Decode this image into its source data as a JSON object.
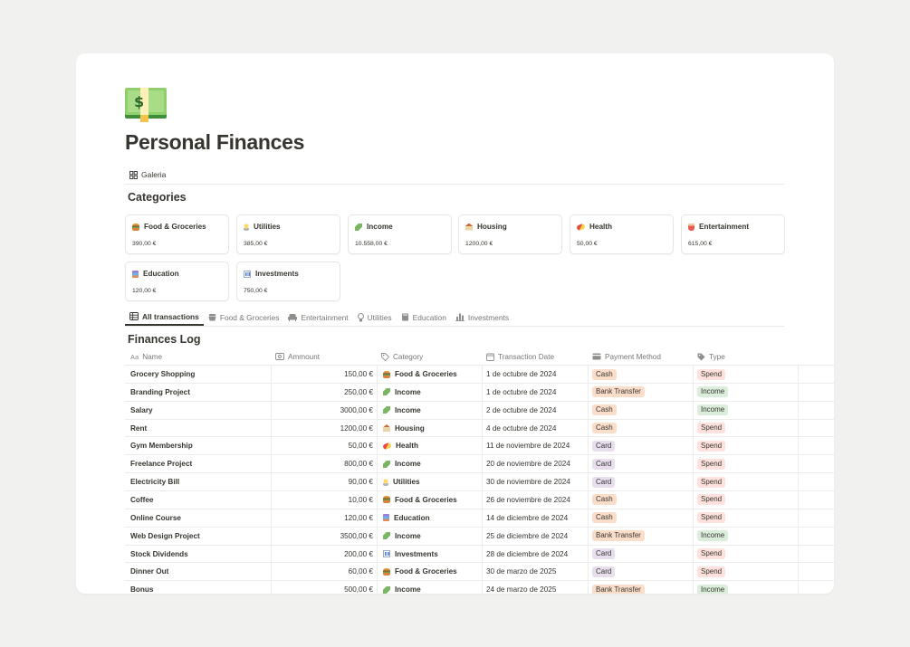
{
  "page": {
    "title": "Personal Finances"
  },
  "top_view": {
    "label": "Galeria"
  },
  "categories_section": {
    "title": "Categories",
    "cards": [
      {
        "name": "Food & Groceries",
        "amount": "390,00 €",
        "icon": "food-icon"
      },
      {
        "name": "Utilities",
        "amount": "385,00 €",
        "icon": "lightbulb-icon"
      },
      {
        "name": "Income",
        "amount": "10.558,00 €",
        "icon": "money-icon"
      },
      {
        "name": "Housing",
        "amount": "1200,00 €",
        "icon": "house-icon"
      },
      {
        "name": "Health",
        "amount": "50,00 €",
        "icon": "pill-icon"
      },
      {
        "name": "Entertainment",
        "amount": "615,00 €",
        "icon": "popcorn-icon"
      },
      {
        "name": "Education",
        "amount": "120,00 €",
        "icon": "books-icon"
      },
      {
        "name": "Investments",
        "amount": "750,00 €",
        "icon": "chart-icon"
      }
    ]
  },
  "tabs": [
    {
      "label": "All transactions",
      "active": true,
      "icon": "table-icon"
    },
    {
      "label": "Food & Groceries",
      "icon": "basket-icon"
    },
    {
      "label": "Entertainment",
      "icon": "sofa-icon"
    },
    {
      "label": "Utilities",
      "icon": "lightbulb-icon"
    },
    {
      "label": "Education",
      "icon": "book-icon"
    },
    {
      "label": "Investments",
      "icon": "bar-chart-icon"
    }
  ],
  "log": {
    "title": "Finances Log",
    "columns": {
      "name": "Name",
      "amount": "Ammount",
      "category": "Category",
      "date": "Transaction Date",
      "payment": "Payment Method",
      "type": "Type"
    },
    "rows": [
      {
        "name": "Grocery Shopping",
        "amount": "150,00 €",
        "category": "Food & Groceries",
        "cat_icon": "food",
        "date": "1 de octubre de 2024",
        "payment": "Cash",
        "type": "Spend"
      },
      {
        "name": "Branding Project",
        "amount": "250,00 €",
        "category": "Income",
        "cat_icon": "income",
        "date": "1 de octubre de 2024",
        "payment": "Bank Transfer",
        "type": "Income"
      },
      {
        "name": "Salary",
        "amount": "3000,00 €",
        "category": "Income",
        "cat_icon": "income",
        "date": "2 de octubre de 2024",
        "payment": "Cash",
        "type": "Income"
      },
      {
        "name": "Rent",
        "amount": "1200,00 €",
        "category": "Housing",
        "cat_icon": "housing",
        "date": "4 de octubre de 2024",
        "payment": "Cash",
        "type": "Spend"
      },
      {
        "name": "Gym Membership",
        "amount": "50,00 €",
        "category": "Health",
        "cat_icon": "health",
        "date": "11 de noviembre de 2024",
        "payment": "Card",
        "type": "Spend"
      },
      {
        "name": "Freelance Project",
        "amount": "800,00 €",
        "category": "Income",
        "cat_icon": "income",
        "date": "20 de noviembre de 2024",
        "payment": "Card",
        "type": "Spend"
      },
      {
        "name": "Electricity Bill",
        "amount": "90,00 €",
        "category": "Utilities",
        "cat_icon": "util",
        "date": "30 de noviembre de 2024",
        "payment": "Card",
        "type": "Spend"
      },
      {
        "name": "Coffee",
        "amount": "10,00 €",
        "category": "Food & Groceries",
        "cat_icon": "food",
        "date": "26 de noviembre de 2024",
        "payment": "Cash",
        "type": "Spend"
      },
      {
        "name": "Online Course",
        "amount": "120,00 €",
        "category": "Education",
        "cat_icon": "edu",
        "date": "14 de diciembre de 2024",
        "payment": "Cash",
        "type": "Spend"
      },
      {
        "name": "Web Design Project",
        "amount": "3500,00 €",
        "category": "Income",
        "cat_icon": "income",
        "date": "25 de diciembre de 2024",
        "payment": "Bank Transfer",
        "type": "Income"
      },
      {
        "name": "Stock Dividends",
        "amount": "200,00 €",
        "category": "Investments",
        "cat_icon": "inv",
        "date": "28 de diciembre de 2024",
        "payment": "Card",
        "type": "Spend"
      },
      {
        "name": "Dinner Out",
        "amount": "60,00 €",
        "category": "Food & Groceries",
        "cat_icon": "food",
        "date": "30 de marzo de 2025",
        "payment": "Card",
        "type": "Spend"
      },
      {
        "name": "Bonus",
        "amount": "500,00 €",
        "category": "Income",
        "cat_icon": "income",
        "date": "24 de marzo de 2025",
        "payment": "Bank Transfer",
        "type": "Income"
      }
    ]
  },
  "colors": {
    "cash": "#fadec9",
    "bank_transfer": "#fadec9",
    "card": "#e8deee",
    "spend": "#ffe2dd",
    "income": "#dbeddb"
  }
}
